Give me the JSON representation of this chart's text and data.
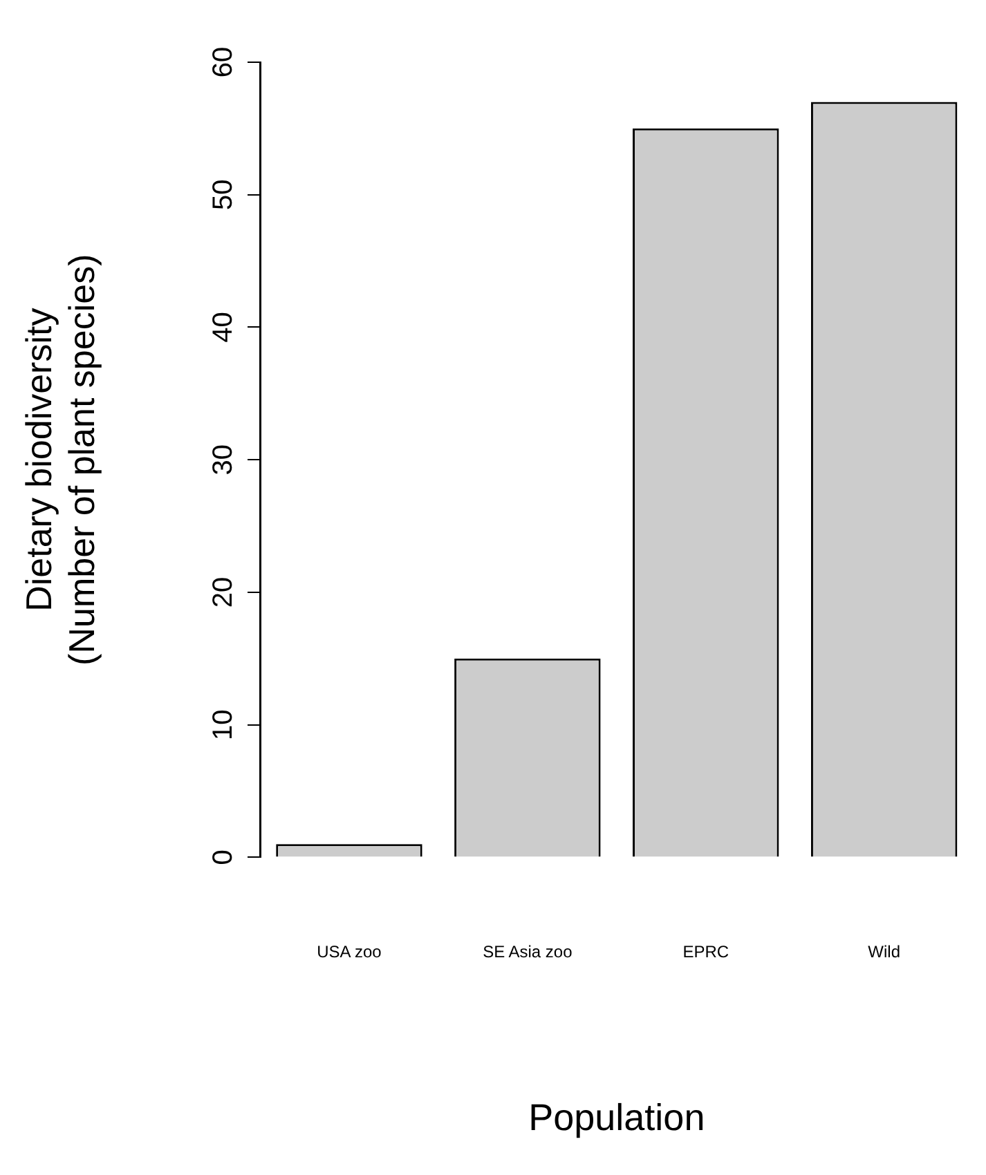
{
  "chart_data": {
    "type": "bar",
    "xlabel": "Population",
    "ylabel": "Dietary biodiversity\n(Number of plant species)",
    "categories": [
      "USA zoo",
      "SE Asia zoo",
      "EPRC",
      "Wild"
    ],
    "values": [
      1,
      15,
      55,
      57
    ],
    "color": "#cccccc",
    "ylim": [
      0,
      60
    ],
    "yticks": [
      0,
      10,
      20,
      30,
      40,
      50,
      60
    ],
    "grid": false,
    "legend": false
  }
}
